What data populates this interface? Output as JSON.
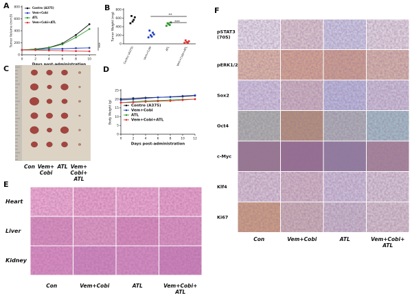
{
  "chart_data": [
    {
      "panel": "A",
      "type": "line",
      "y_label": "Tumor Volume (mm3)",
      "x_label": "Days post-administration",
      "x": [
        0,
        2,
        4,
        6,
        8,
        10
      ],
      "xlim": [
        0,
        11
      ],
      "xticks": [
        0,
        2,
        4,
        6,
        8,
        10
      ],
      "ylim": [
        0,
        800
      ],
      "yticks": [
        0,
        200,
        400,
        600,
        800
      ],
      "legend": "upper left",
      "series": [
        {
          "name": "Contro (A375)",
          "color": "#111111",
          "values": [
            80,
            95,
            120,
            190,
            330,
            510
          ]
        },
        {
          "name": "Vem+Cobi",
          "color": "#1f3fbf",
          "values": [
            80,
            85,
            95,
            100,
            110,
            115
          ]
        },
        {
          "name": "ATL",
          "color": "#2a9a2a",
          "values": [
            80,
            90,
            115,
            175,
            290,
            430
          ]
        },
        {
          "name": "Vem+Cobi+ATL",
          "color": "#e03030",
          "values": [
            80,
            78,
            72,
            68,
            62,
            58
          ]
        }
      ],
      "annotations": [
        "***"
      ]
    },
    {
      "panel": "B",
      "type": "dot",
      "y_label": "Tumor Weight (mg)",
      "categories": [
        "Contro (A375)",
        "Vem+Cobi",
        "ATL",
        "Vem+Cobi+ATL"
      ],
      "colors": [
        "#111111",
        "#1f3fbf",
        "#2a9a2a",
        "#e03030"
      ],
      "values": [
        [
          480,
          520,
          620,
          650,
          560
        ],
        [
          150,
          200,
          260,
          310,
          170,
          220
        ],
        [
          420,
          460,
          500,
          480,
          440
        ],
        [
          20,
          40,
          60,
          80,
          30
        ]
      ],
      "ylim": [
        0,
        800
      ],
      "yticks": [
        0,
        200,
        400,
        600,
        800
      ],
      "annotations": [
        "**",
        "***"
      ]
    },
    {
      "panel": "D",
      "type": "line",
      "y_label": "Body Weight (g)",
      "x_label": "Days post-administration",
      "x": [
        0,
        2,
        4,
        6,
        8,
        10,
        12
      ],
      "xlim": [
        0,
        12
      ],
      "xticks": [
        0,
        2,
        4,
        6,
        8,
        10,
        12
      ],
      "ylim": [
        0,
        25
      ],
      "yticks": [
        0,
        5,
        10,
        15,
        20,
        25
      ],
      "legend": "center left",
      "series": [
        {
          "name": "Contro (A375)",
          "color": "#111111",
          "values": [
            20,
            20.5,
            20.8,
            21,
            21.2,
            21.5,
            22
          ]
        },
        {
          "name": "Vem+Cobi",
          "color": "#1f3fbf",
          "values": [
            19.5,
            19.8,
            20.5,
            21,
            21.3,
            21.8,
            22.2
          ]
        },
        {
          "name": "ATL",
          "color": "#2a9a2a",
          "values": [
            18,
            18.5,
            19,
            19.2,
            19.5,
            19.8,
            20
          ]
        },
        {
          "name": "Vem+Cobi+ATL",
          "color": "#e03030",
          "values": [
            18,
            18.2,
            18.5,
            18.8,
            19,
            19.5,
            20
          ]
        }
      ]
    }
  ],
  "panel_c": {
    "panel": "C",
    "columns": [
      "Con",
      "Vem+ Cobi",
      "ATL",
      "Vem+ Cobi+ ATL"
    ]
  },
  "panel_e": {
    "panel": "E",
    "rows": [
      "Heart",
      "Liver",
      "Kidney"
    ],
    "columns": [
      "Con",
      "Vem+Cobi",
      "ATL",
      "Vem+Cobi+ ATL"
    ]
  },
  "panel_f": {
    "panel": "F",
    "rows": [
      "pSTAT3 (705)",
      "pERK1/2",
      "Sox2",
      "Oct4",
      "c-Myc",
      "Klf4",
      "Ki67"
    ],
    "columns": [
      "Con",
      "Vem+Cobi",
      "ATL",
      "Vem+Cobi+ ATL"
    ]
  }
}
